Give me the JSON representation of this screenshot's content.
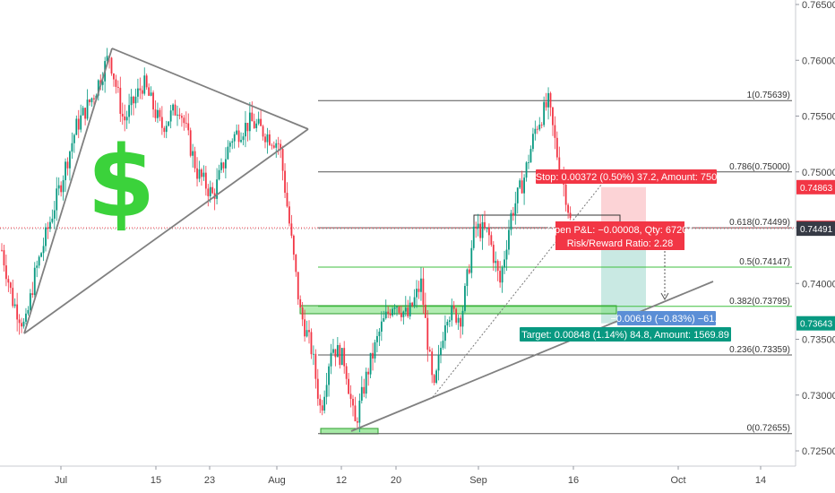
{
  "chart_data": {
    "type": "candlestick",
    "y_ticks": [
      "0.76500",
      "0.76000",
      "0.75500",
      "0.75000",
      "0.74500",
      "0.74000",
      "0.73500",
      "0.73000",
      "0.72500"
    ],
    "x_ticks": [
      "Jul",
      "15",
      "23",
      "Aug",
      "12",
      "20",
      "Sep",
      "16",
      "Oct",
      "14"
    ],
    "ylim": [
      0.7243,
      0.7668
    ],
    "fib_levels": [
      {
        "label": "1(0.75639)",
        "value": 0.75639
      },
      {
        "label": "0.786(0.75000)",
        "value": 0.75
      },
      {
        "label": "0.618(0.74499)",
        "value": 0.74499
      },
      {
        "label": "0.5(0.74147)",
        "value": 0.74147
      },
      {
        "label": "0.382(0.73795)",
        "value": 0.73795
      },
      {
        "label": "0.236(0.73359)",
        "value": 0.73359
      },
      {
        "label": "0(0.72655)",
        "value": 0.72655
      }
    ],
    "price_badges": [
      {
        "text": "0.74863",
        "value": 0.74863,
        "color": "#f23645"
      },
      {
        "text": "0.74499",
        "value": 0.74499,
        "color": "#f23645"
      },
      {
        "text": "0.74491",
        "value": 0.74491,
        "color": "#363a45"
      },
      {
        "text": "0.73643",
        "value": 0.73643,
        "color": "#089981"
      }
    ],
    "position": {
      "stop_label": "Stop: 0.00372 (0.50%) 37.2, Amount: 750",
      "pnl_label": "Open P&L: −0.00008, Qty: 67204",
      "rr_label": "Risk/Reward Ratio: 2.28",
      "move_label": "−0.00619 (−0.83%) −61.9",
      "target_label": "Target: 0.00848 (1.14%) 84.8, Amount: 1569.89",
      "entry": 0.74491,
      "stop": 0.74863,
      "target": 0.73643
    },
    "annotation_symbol": "$",
    "colors": {
      "up": "#089981",
      "down": "#f23645",
      "dollar": "#3bd23b"
    }
  }
}
